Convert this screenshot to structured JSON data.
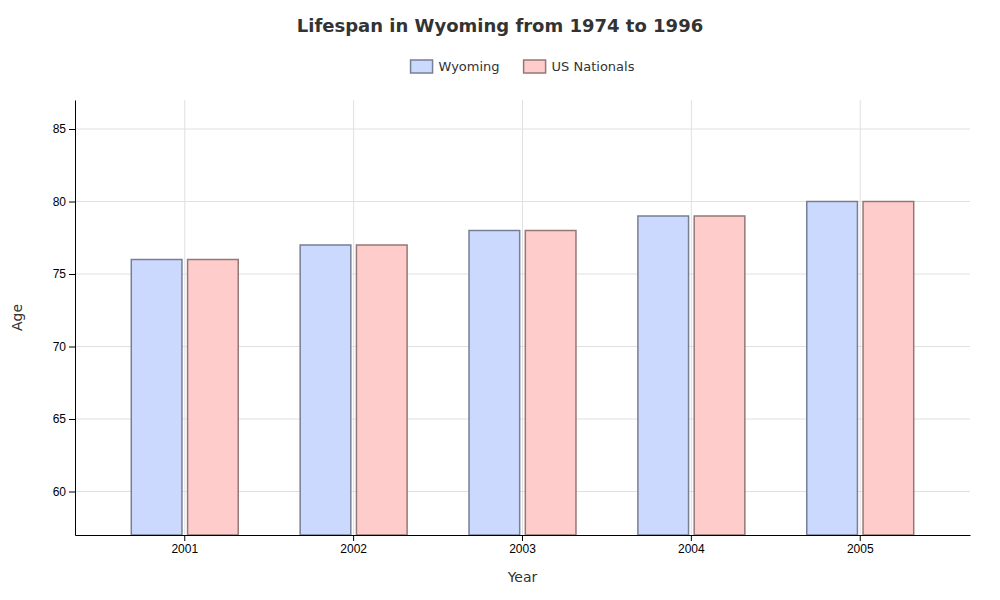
{
  "chart_data": {
    "type": "bar",
    "title": "Lifespan in Wyoming from 1974 to 1996",
    "xlabel": "Year",
    "ylabel": "Age",
    "categories": [
      "2001",
      "2002",
      "2003",
      "2004",
      "2005"
    ],
    "series": [
      {
        "name": "Wyoming",
        "color": "#ccd9ff",
        "values": [
          76,
          77,
          78,
          79,
          80
        ]
      },
      {
        "name": "US Nationals",
        "color": "#ffcccc",
        "values": [
          76,
          77,
          78,
          79,
          80
        ]
      }
    ],
    "ylim": [
      57,
      87
    ],
    "yticks": [
      60,
      65,
      70,
      75,
      80,
      85
    ],
    "grid": true,
    "legend": "top"
  }
}
